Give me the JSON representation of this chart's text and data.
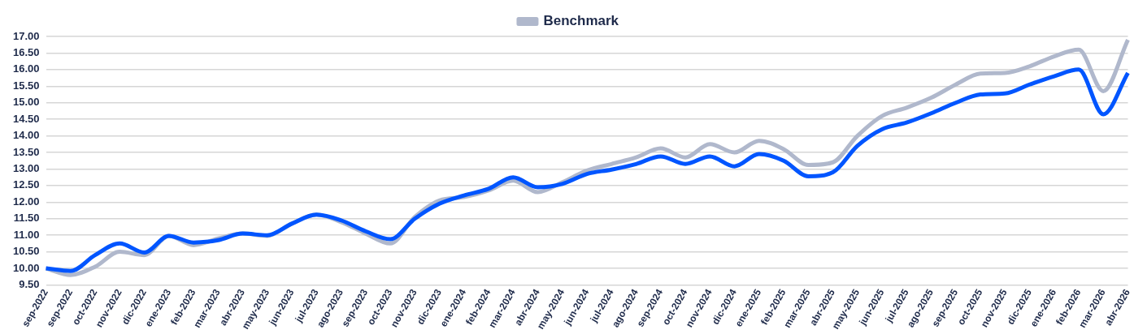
{
  "chart_data": {
    "type": "line",
    "categories": [
      "sep-2022",
      "sep-2022",
      "oct-2022",
      "nov-2022",
      "dic-2022",
      "ene-2023",
      "feb-2023",
      "mar-2023",
      "abr-2023",
      "may-2023",
      "jun-2023",
      "jul-2023",
      "ago-2023",
      "sep-2023",
      "oct-2023",
      "nov-2023",
      "dic-2023",
      "ene-2024",
      "feb-2024",
      "mar-2024",
      "abr-2024",
      "may-2024",
      "jun-2024",
      "jul-2024",
      "ago-2024",
      "sep-2024",
      "oct-2024",
      "nov-2024",
      "dic-2024",
      "ene-2025",
      "feb-2025",
      "mar-2025",
      "abr-2025",
      "may-2025",
      "jun-2025",
      "jul-2025",
      "ago-2025",
      "sep-2025",
      "oct-2025",
      "nov-2025",
      "dic-2025",
      "ene-2026",
      "feb-2026",
      "mar-2026",
      "abr-2026"
    ],
    "series": [
      {
        "name": "Benchmark",
        "color": "#b0b8cc",
        "values": [
          10.0,
          9.8,
          10.05,
          10.5,
          10.4,
          10.98,
          10.7,
          10.9,
          11.05,
          10.98,
          11.35,
          11.62,
          11.4,
          11.05,
          10.75,
          11.55,
          12.05,
          12.15,
          12.35,
          12.65,
          12.3,
          12.6,
          12.95,
          13.15,
          13.35,
          13.62,
          13.35,
          13.75,
          13.5,
          13.85,
          13.6,
          13.12,
          13.2,
          14.0,
          14.6,
          14.85,
          15.15,
          15.55,
          15.88,
          15.9,
          16.1,
          16.4,
          16.6,
          15.35,
          16.9
        ]
      },
      {
        "color": "#0055ff",
        "values": [
          10.0,
          9.92,
          10.4,
          10.75,
          10.48,
          10.98,
          10.78,
          10.85,
          11.05,
          11.0,
          11.35,
          11.62,
          11.45,
          11.12,
          10.88,
          11.5,
          11.95,
          12.2,
          12.4,
          12.75,
          12.45,
          12.55,
          12.85,
          12.98,
          13.15,
          13.38,
          13.15,
          13.38,
          13.08,
          13.45,
          13.25,
          12.78,
          12.9,
          13.7,
          14.2,
          14.4,
          14.68,
          15.0,
          15.25,
          15.28,
          15.55,
          15.8,
          16.0,
          14.65,
          15.9
        ]
      }
    ],
    "ylim": [
      9.5,
      17
    ],
    "yticks": [
      {
        "value": 9.5,
        "label": "9.50"
      },
      {
        "value": 10,
        "label": "10.00"
      },
      {
        "value": 10.5,
        "label": "10.50"
      },
      {
        "value": 11,
        "label": "11.00"
      },
      {
        "value": 11.5,
        "label": "11.50"
      },
      {
        "value": 12,
        "label": "12.00"
      },
      {
        "value": 12.5,
        "label": "12.50"
      },
      {
        "value": 13,
        "label": "13.00"
      },
      {
        "value": 13.5,
        "label": "13.50"
      },
      {
        "value": 14,
        "label": "14.00"
      },
      {
        "value": 14.5,
        "label": "14.50"
      },
      {
        "value": 15,
        "label": "15.00"
      },
      {
        "value": 15.5,
        "label": "15.50"
      },
      {
        "value": 16,
        "label": "16.00"
      },
      {
        "value": 16.5,
        "label": "16.50"
      },
      {
        "value": 17,
        "label": "17.00"
      }
    ],
    "grid": "y",
    "legend": "top",
    "marker": "none",
    "line_style": "solid"
  }
}
